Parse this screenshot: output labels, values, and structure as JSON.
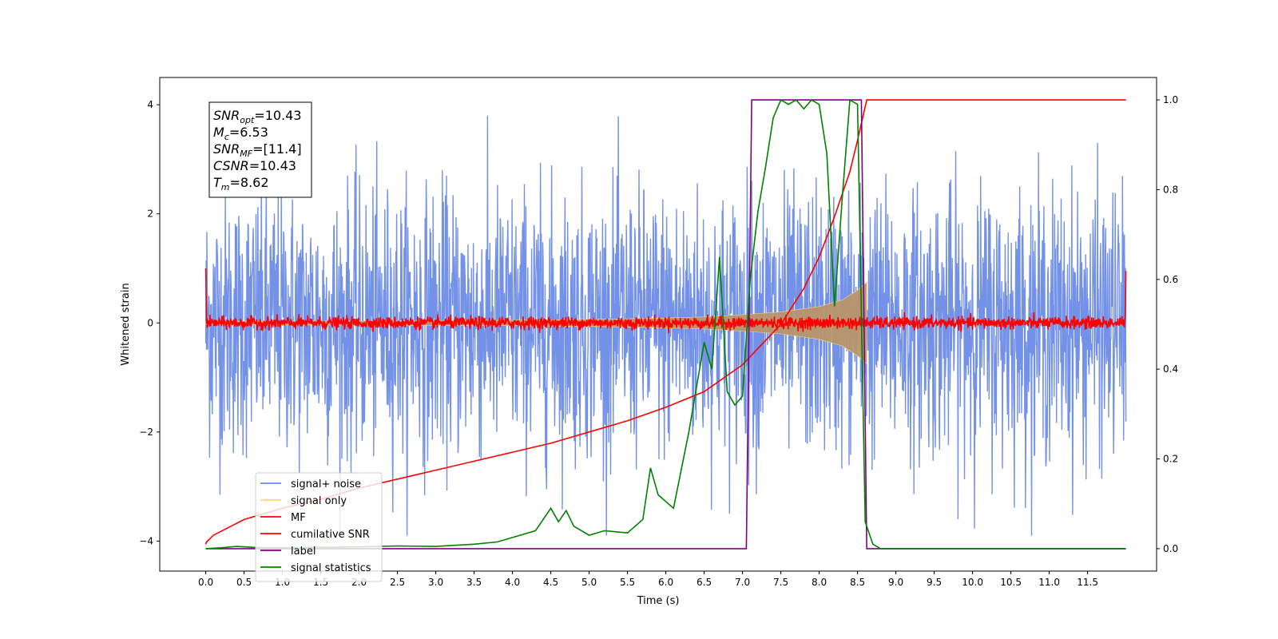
{
  "chart_data": {
    "type": "line",
    "xlabel": "Time (s)",
    "ylabel": "Whitened strain",
    "xlim": [
      -0.6,
      12.4
    ],
    "ylim": [
      -4.55,
      4.5
    ],
    "ylim_right": [
      -0.05,
      1.05
    ],
    "x_ticks": [
      0.0,
      0.5,
      1.0,
      1.5,
      2.0,
      2.5,
      3.0,
      3.5,
      4.0,
      4.5,
      5.0,
      5.5,
      6.0,
      6.5,
      7.0,
      7.5,
      8.0,
      8.5,
      9.0,
      9.5,
      10.0,
      10.5,
      11.0,
      11.5
    ],
    "x_tick_labels": [
      "0.0",
      "0.5",
      "1.0",
      "1.5",
      "2.0",
      "2.5",
      "3.0",
      "3.5",
      "4.0",
      "4.5",
      "5.0",
      "5.5",
      "6.0",
      "6.5",
      "7.0",
      "7.5",
      "8.0",
      "8.5",
      "9.0",
      "9.5",
      "10.0",
      "10.5",
      "11.0",
      "11.5"
    ],
    "y_ticks": [
      -4,
      -2,
      0,
      2,
      4
    ],
    "y_tick_labels": [
      "−4",
      "−2",
      "0",
      "2",
      "4"
    ],
    "y_ticks_right": [
      0.0,
      0.2,
      0.4,
      0.6,
      0.8,
      1.0
    ],
    "y_tick_labels_right": [
      "0.0",
      "0.2",
      "0.4",
      "0.6",
      "0.8",
      "1.0"
    ],
    "grid": false,
    "legend_position": "lower-left",
    "legend": [
      {
        "name": "signal+ noise",
        "color": "#6c8ce6"
      },
      {
        "name": "signal only",
        "color": "#ffd27a"
      },
      {
        "name": "MF",
        "color": "#ff0000"
      },
      {
        "name": "cumilative SNR",
        "color": "#ff0000"
      },
      {
        "name": "label",
        "color": "#800080"
      },
      {
        "name": "signal statistics",
        "color": "#008000"
      }
    ],
    "annotation": [
      {
        "main": "SNR",
        "sub": "opt",
        "rest": "=10.43"
      },
      {
        "main": "M",
        "sub": "c",
        "rest": "=6.53"
      },
      {
        "main": "SNR",
        "sub": "MF",
        "rest": "=[11.4]"
      },
      {
        "main": "CSNR",
        "sub": "",
        "rest": "=10.43"
      },
      {
        "main": "T",
        "sub": "m",
        "rest": "=8.62"
      }
    ],
    "series": [
      {
        "name": "signal+ noise",
        "axis": "left",
        "color": "#6c8ce6",
        "x_range": [
          0.0,
          12.0
        ],
        "approx_band": [
          -2.6,
          2.6
        ],
        "approx_extremes": [
          -4.15,
          4.1
        ]
      },
      {
        "name": "signal only",
        "axis": "left",
        "color": "#ffd27a",
        "x_range": [
          0.0,
          8.62
        ],
        "envelope_x": [
          0.0,
          1.0,
          2.0,
          3.0,
          4.0,
          5.0,
          5.5,
          6.0,
          6.5,
          7.0,
          7.5,
          8.0,
          8.3,
          8.5,
          8.62
        ],
        "envelope_amp": [
          0.03,
          0.035,
          0.04,
          0.045,
          0.05,
          0.065,
          0.075,
          0.09,
          0.11,
          0.15,
          0.2,
          0.3,
          0.42,
          0.6,
          0.75
        ]
      },
      {
        "name": "MF",
        "axis": "left",
        "color": "#ff0000",
        "x_range": [
          0.0,
          12.0
        ],
        "approx_band": [
          -0.12,
          0.15
        ]
      },
      {
        "name": "cumilative SNR",
        "axis": "right",
        "color": "#ff0000",
        "x": [
          0.0,
          0.01,
          0.1,
          0.5,
          1.0,
          1.5,
          2.0,
          2.5,
          3.0,
          3.5,
          4.0,
          4.5,
          5.0,
          5.5,
          6.0,
          6.5,
          7.0,
          7.5,
          7.8,
          8.0,
          8.2,
          8.4,
          8.5,
          8.62,
          12.0
        ],
        "y": [
          0.01,
          0.015,
          0.03,
          0.065,
          0.09,
          0.11,
          0.135,
          0.155,
          0.175,
          0.195,
          0.215,
          0.235,
          0.26,
          0.285,
          0.315,
          0.35,
          0.41,
          0.5,
          0.58,
          0.65,
          0.74,
          0.84,
          0.91,
          1.0,
          1.0
        ]
      },
      {
        "name": "label",
        "axis": "right",
        "color": "#800080",
        "x": [
          0.0,
          7.05,
          7.12,
          8.55,
          8.62,
          12.0
        ],
        "y": [
          0.0,
          0.0,
          1.0,
          1.0,
          0.0,
          0.0
        ]
      },
      {
        "name": "signal statistics",
        "axis": "right",
        "color": "#008000",
        "x": [
          0.0,
          0.2,
          0.4,
          0.6,
          0.8,
          1.0,
          1.5,
          2.0,
          2.5,
          3.0,
          3.5,
          3.8,
          4.0,
          4.1,
          4.3,
          4.5,
          4.6,
          4.7,
          4.8,
          5.0,
          5.2,
          5.5,
          5.7,
          5.8,
          5.9,
          6.1,
          6.3,
          6.5,
          6.6,
          6.7,
          6.8,
          6.9,
          7.0,
          7.1,
          7.2,
          7.3,
          7.4,
          7.5,
          7.6,
          7.7,
          7.8,
          7.9,
          8.0,
          8.1,
          8.2,
          8.3,
          8.4,
          8.5,
          8.6,
          8.7,
          8.8,
          9.0,
          10.0,
          11.0,
          12.0
        ],
        "y": [
          0.0,
          0.002,
          0.005,
          0.003,
          0.002,
          0.002,
          0.003,
          0.004,
          0.006,
          0.005,
          0.01,
          0.015,
          0.025,
          0.03,
          0.04,
          0.09,
          0.06,
          0.085,
          0.05,
          0.03,
          0.04,
          0.035,
          0.065,
          0.18,
          0.12,
          0.09,
          0.26,
          0.46,
          0.4,
          0.65,
          0.35,
          0.32,
          0.34,
          0.6,
          0.75,
          0.85,
          0.96,
          1.0,
          0.99,
          1.0,
          0.98,
          1.0,
          0.99,
          0.88,
          0.54,
          0.78,
          1.0,
          0.99,
          0.06,
          0.01,
          0.0,
          0.0,
          0.0,
          0.0,
          0.0
        ]
      }
    ]
  }
}
